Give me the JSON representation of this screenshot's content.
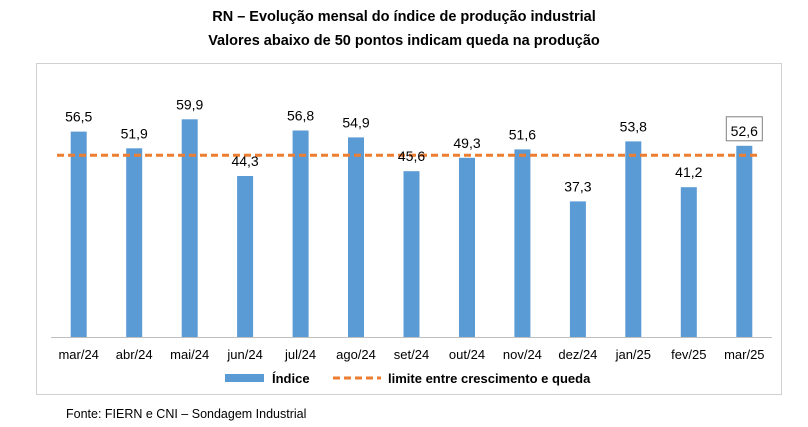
{
  "chart_data": {
    "type": "bar",
    "title": "RN – Evolução mensal do índice de produção industrial",
    "subtitle": "Valores abaixo de 50 pontos indicam queda na produção",
    "categories": [
      "mar/24",
      "abr/24",
      "mai/24",
      "jun/24",
      "jul/24",
      "ago/24",
      "set/24",
      "out/24",
      "nov/24",
      "dez/24",
      "jan/25",
      "fev/25",
      "mar/25"
    ],
    "series": [
      {
        "name": "Índice",
        "values": [
          56.5,
          51.9,
          59.9,
          44.3,
          56.8,
          54.9,
          45.6,
          49.3,
          51.6,
          37.3,
          53.8,
          41.2,
          52.6
        ],
        "labels": [
          "56,5",
          "51,9",
          "59,9",
          "44,3",
          "56,8",
          "54,9",
          "45,6",
          "49,3",
          "51,6",
          "37,3",
          "53,8",
          "41,2",
          "52,6"
        ],
        "color": "#5b9bd5"
      }
    ],
    "reference_line": {
      "name": "limite entre crescimento e queda",
      "value": 50,
      "color": "#ed7d31"
    },
    "ylim": [
      0,
      70
    ],
    "xlabel": "",
    "ylabel": "",
    "grid": false,
    "legend": "bottom"
  },
  "footer": {
    "source": "Fonte: FIERN e CNI – Sondagem Industrial"
  }
}
